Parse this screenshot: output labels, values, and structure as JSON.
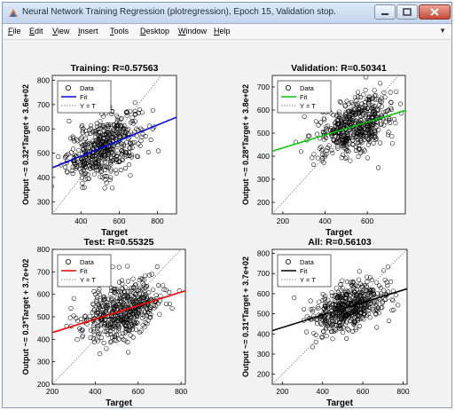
{
  "window": {
    "title": "Neural Network Training Regression (plotregression), Epoch 15, Validation stop."
  },
  "menubar": {
    "items": [
      "File",
      "Edit",
      "View",
      "Insert",
      "Tools",
      "Desktop",
      "Window",
      "Help"
    ]
  },
  "colors": {
    "training_fit": "#0000ff",
    "validation_fit": "#00c800",
    "test_fit": "#ff0000",
    "all_fit": "#000000",
    "yt_line": "#888888"
  },
  "chart_data": [
    {
      "type": "scatter",
      "title": "Training: R=0.57563",
      "xlabel": "Target",
      "ylabel": "Output ~= 0.32*Target + 3.6e+02",
      "xlim": [
        250,
        900
      ],
      "ylim": [
        250,
        820
      ],
      "xticks": [
        400,
        600,
        800
      ],
      "yticks": [
        300,
        400,
        500,
        600,
        700,
        800
      ],
      "fit": {
        "slope": 0.32,
        "intercept": 360
      },
      "center": [
        520,
        530
      ],
      "spread": [
        95,
        60
      ],
      "legend": [
        "Data",
        "Fit",
        "Y = T"
      ],
      "legend_position": "top-left"
    },
    {
      "type": "scatter",
      "title": "Validation: R=0.50341",
      "xlabel": "Target",
      "ylabel": "Output ~= 0.28*Target + 3.8e+02",
      "xlim": [
        150,
        780
      ],
      "ylim": [
        150,
        750
      ],
      "xticks": [
        200,
        400,
        600
      ],
      "yticks": [
        200,
        300,
        400,
        500,
        600,
        700
      ],
      "fit": {
        "slope": 0.28,
        "intercept": 380
      },
      "center": [
        540,
        530
      ],
      "spread": [
        90,
        60
      ],
      "legend": [
        "Data",
        "Fit",
        "Y = T"
      ],
      "legend_position": "top-left"
    },
    {
      "type": "scatter",
      "title": "Test: R=0.55325",
      "xlabel": "Target",
      "ylabel": "Output ~= 0.3*Target + 3.7e+02",
      "xlim": [
        200,
        820
      ],
      "ylim": [
        200,
        800
      ],
      "xticks": [
        200,
        400,
        600,
        800
      ],
      "yticks": [
        200,
        300,
        400,
        500,
        600,
        700,
        800
      ],
      "fit": {
        "slope": 0.3,
        "intercept": 370
      },
      "center": [
        530,
        530
      ],
      "spread": [
        90,
        60
      ],
      "legend": [
        "Data",
        "Fit",
        "Y = T"
      ],
      "legend_position": "top-left"
    },
    {
      "type": "scatter",
      "title": "All: R=0.56103",
      "xlabel": "Target",
      "ylabel": "Output ~= 0.31*Target + 3.7e+02",
      "xlim": [
        150,
        820
      ],
      "ylim": [
        150,
        820
      ],
      "xticks": [
        200,
        400,
        600,
        800
      ],
      "yticks": [
        200,
        300,
        400,
        500,
        600,
        700,
        800
      ],
      "fit": {
        "slope": 0.31,
        "intercept": 370
      },
      "center": [
        530,
        530
      ],
      "spread": [
        95,
        60
      ],
      "legend": [
        "Data",
        "Fit",
        "Y = T"
      ],
      "legend_position": "top-left"
    }
  ]
}
